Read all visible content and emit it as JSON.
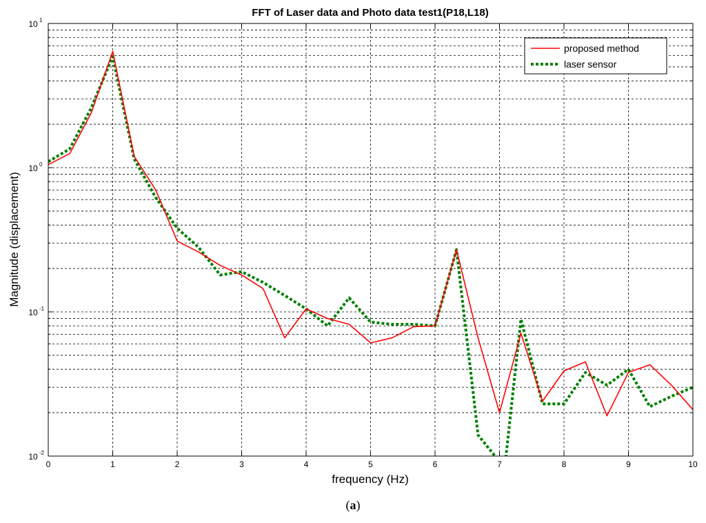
{
  "chart_data": {
    "type": "line",
    "title": "FFT of Laser data and Photo data test1(P18,L18)",
    "xlabel": "frequency (Hz)",
    "ylabel": "Magnitude (displacement)",
    "xlim": [
      0,
      10
    ],
    "ylim": [
      0.01,
      10
    ],
    "yscale": "log",
    "grid": true,
    "legend_position": "top-right",
    "x_ticks": [
      "0",
      "1",
      "2",
      "3",
      "4",
      "5",
      "6",
      "7",
      "8",
      "9",
      "10"
    ],
    "y_ticks": [
      {
        "value": 10,
        "base": "10",
        "exp": "1"
      },
      {
        "value": 1,
        "base": "10",
        "exp": "0"
      },
      {
        "value": 0.1,
        "base": "10",
        "exp": "-1"
      },
      {
        "value": 0.01,
        "base": "10",
        "exp": "-2"
      }
    ],
    "series": [
      {
        "name": "proposed method",
        "color": "#ff0000",
        "style": "solid",
        "x": [
          0,
          0.333,
          0.667,
          1.0,
          1.333,
          1.667,
          2.0,
          2.333,
          2.667,
          3.0,
          3.333,
          3.667,
          4.0,
          4.333,
          4.667,
          5.0,
          5.333,
          5.667,
          6.0,
          6.333,
          6.667,
          7.0,
          7.333,
          7.667,
          8.0,
          8.333,
          8.667,
          9.0,
          9.333,
          9.667,
          10.0
        ],
        "y": [
          1.05,
          1.25,
          2.4,
          6.4,
          1.2,
          0.7,
          0.31,
          0.26,
          0.21,
          0.18,
          0.145,
          0.066,
          0.105,
          0.09,
          0.082,
          0.061,
          0.066,
          0.079,
          0.08,
          0.27,
          0.066,
          0.02,
          0.071,
          0.024,
          0.039,
          0.045,
          0.019,
          0.038,
          0.043,
          0.031,
          0.021
        ]
      },
      {
        "name": "laser sensor",
        "color": "#008000",
        "style": "dotted",
        "x": [
          0,
          0.333,
          0.667,
          1.0,
          1.333,
          1.667,
          2.0,
          2.333,
          2.667,
          3.0,
          3.333,
          3.667,
          4.0,
          4.333,
          4.667,
          5.0,
          5.333,
          5.667,
          6.0,
          6.333,
          6.667,
          6.93,
          7.0,
          7.1,
          7.333,
          7.667,
          8.0,
          8.333,
          8.667,
          9.0,
          9.333,
          9.667,
          10.0
        ],
        "y": [
          1.1,
          1.35,
          2.6,
          5.9,
          1.15,
          0.62,
          0.38,
          0.28,
          0.18,
          0.19,
          0.16,
          0.13,
          0.105,
          0.08,
          0.125,
          0.085,
          0.082,
          0.082,
          0.08,
          0.27,
          0.014,
          0.01,
          0.009,
          0.01,
          0.089,
          0.023,
          0.023,
          0.038,
          0.031,
          0.04,
          0.022,
          0.026,
          0.03
        ]
      }
    ]
  },
  "caption": {
    "open": "(",
    "letter": "a",
    "close": ")"
  }
}
